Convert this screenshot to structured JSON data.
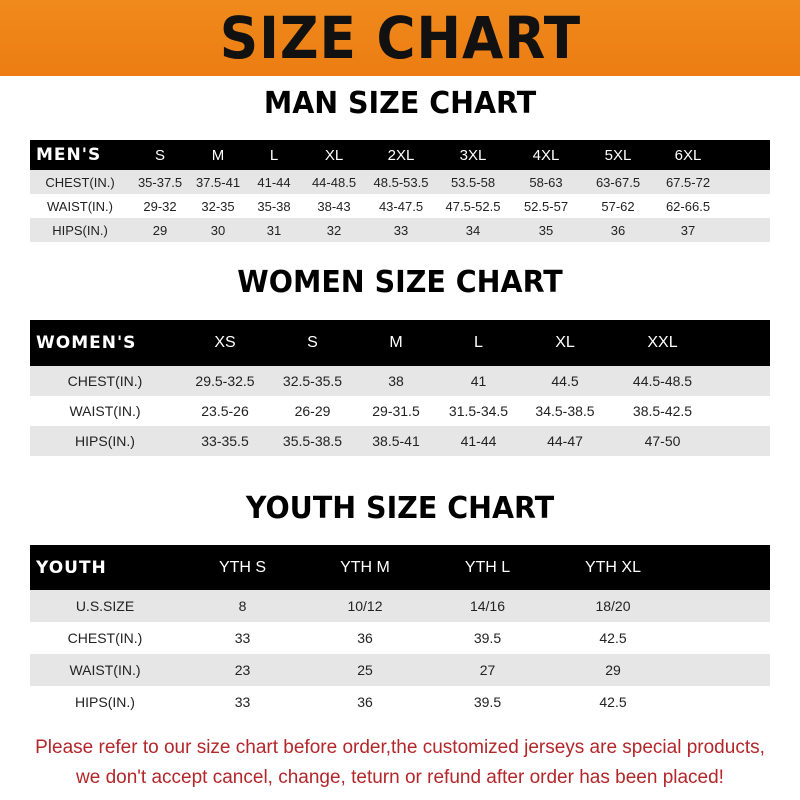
{
  "banner_title": "SIZE CHART",
  "men": {
    "title": "MAN SIZE CHART",
    "header": [
      "MEN'S",
      "S",
      "M",
      "L",
      "XL",
      "2XL",
      "3XL",
      "4XL",
      "5XL",
      "6XL"
    ],
    "rows": [
      [
        "CHEST(IN.)",
        "35-37.5",
        "37.5-41",
        "41-44",
        "44-48.5",
        "48.5-53.5",
        "53.5-58",
        "58-63",
        "63-67.5",
        "67.5-72"
      ],
      [
        "WAIST(IN.)",
        "29-32",
        "32-35",
        "35-38",
        "38-43",
        "43-47.5",
        "47.5-52.5",
        "52.5-57",
        "57-62",
        "62-66.5"
      ],
      [
        "HIPS(IN.)",
        "29",
        "30",
        "31",
        "32",
        "33",
        "34",
        "35",
        "36",
        "37"
      ]
    ]
  },
  "women": {
    "title": "WOMEN SIZE CHART",
    "header": [
      "WOMEN'S",
      "XS",
      "S",
      "M",
      "L",
      "XL",
      "XXL"
    ],
    "rows": [
      [
        "CHEST(IN.)",
        "29.5-32.5",
        "32.5-35.5",
        "38",
        "41",
        "44.5",
        "44.5-48.5"
      ],
      [
        "WAIST(IN.)",
        "23.5-26",
        "26-29",
        "29-31.5",
        "31.5-34.5",
        "34.5-38.5",
        "38.5-42.5"
      ],
      [
        "HIPS(IN.)",
        "33-35.5",
        "35.5-38.5",
        "38.5-41",
        "41-44",
        "44-47",
        "47-50"
      ]
    ]
  },
  "youth": {
    "title": "YOUTH SIZE CHART",
    "header": [
      "YOUTH",
      "YTH S",
      "YTH M",
      "YTH L",
      "YTH XL"
    ],
    "rows": [
      [
        "U.S.SIZE",
        "8",
        "10/12",
        "14/16",
        "18/20"
      ],
      [
        "CHEST(IN.)",
        "33",
        "36",
        "39.5",
        "42.5"
      ],
      [
        "WAIST(IN.)",
        "23",
        "25",
        "27",
        "29"
      ],
      [
        "HIPS(IN.)",
        "33",
        "36",
        "39.5",
        "42.5"
      ]
    ]
  },
  "notice": {
    "line1": "Please refer to our size chart before order,the customized jerseys are special products,",
    "line2": "we don't accept cancel, change, teturn or refund after order has been placed!"
  },
  "colors": {
    "banner": "#ef8418",
    "header_row": "#000000",
    "stripe": "#e6e6e6",
    "notice": "#b3262a"
  }
}
